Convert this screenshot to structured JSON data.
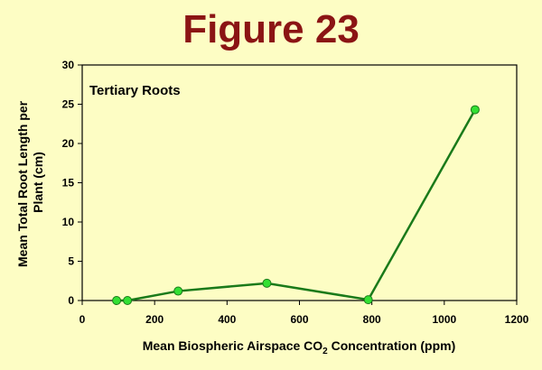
{
  "chart_data": {
    "type": "line",
    "title": "Figure 23",
    "subtitle": "Tertiary Roots",
    "xlabel_parts": [
      "Mean  Biospheric  Airspace  CO",
      "2",
      "  Concentration  (ppm)"
    ],
    "ylabel_lines": [
      "Mean  Total  Root  Length  per",
      "Plant  (cm)"
    ],
    "xlim": [
      0,
      1200
    ],
    "ylim": [
      0,
      30
    ],
    "x_ticks": [
      0,
      200,
      400,
      600,
      800,
      1000,
      1200
    ],
    "y_ticks": [
      0,
      5,
      10,
      15,
      20,
      25,
      30
    ],
    "grid": false,
    "series": [
      {
        "x": [
          95,
          125,
          265,
          510,
          790,
          1085
        ],
        "y": [
          0.0,
          0.0,
          1.2,
          2.2,
          0.1,
          24.3
        ]
      }
    ],
    "colors": {
      "line": "#1a7a1a",
      "marker_fill": "#33e033",
      "marker_stroke": "#1a7a1a",
      "title": "#8b1414",
      "background": "#fdfdc4"
    }
  }
}
